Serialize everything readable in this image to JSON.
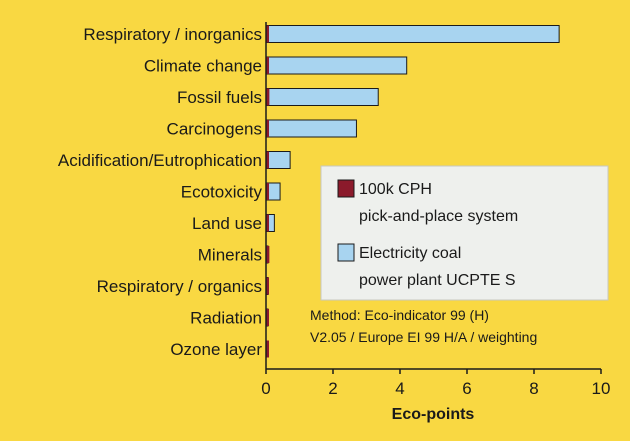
{
  "chart_data": {
    "type": "bar",
    "orientation": "horizontal",
    "categories": [
      "Respiratory / inorganics",
      "Climate change",
      "Fossil fuels",
      "Carcinogens",
      "Acidification/Eutrophication",
      "Ecotoxicity",
      "Land use",
      "Minerals",
      "Respiratory / organics",
      "Radiation",
      "Ozone layer"
    ],
    "series": [
      {
        "name": "100k CPH pick-and-place system",
        "legend_lines": [
          "100k CPH",
          "pick-and-place system"
        ],
        "color": "#8b1a2b",
        "values": [
          0.05,
          0.04,
          0.1,
          0.03,
          0.02,
          0.02,
          0.02,
          0.1,
          0.02,
          0.01,
          0.005
        ]
      },
      {
        "name": "Electricity coal power plant UCPTE S",
        "legend_lines": [
          "Electricity coal",
          "power plant UCPTE S"
        ],
        "color": "#a8d4f0",
        "values": [
          8.75,
          4.2,
          3.35,
          2.7,
          0.72,
          0.42,
          0.25,
          0.03,
          0.05,
          0.02,
          0.0
        ]
      }
    ],
    "xlabel": "Eco-points",
    "ylabel": "",
    "xlim": [
      0,
      10
    ],
    "xticks": [
      "0",
      "2",
      "4",
      "6",
      "8",
      "10"
    ],
    "grid": false,
    "legend_position": "right",
    "annotation": [
      "Method: Eco-indicator 99 (H)",
      "V2.05 / Europe EI 99 H/A / weighting"
    ]
  }
}
